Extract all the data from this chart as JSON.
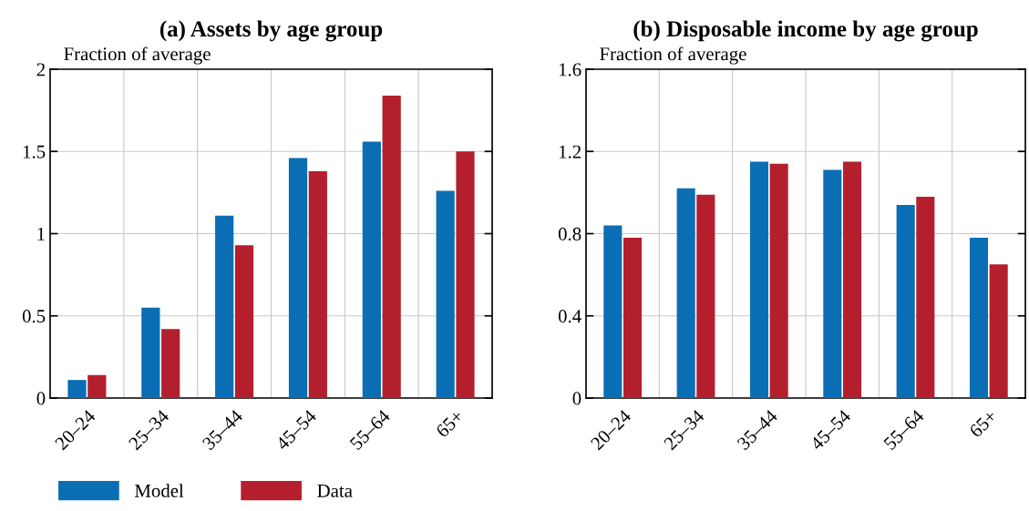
{
  "chart_data": [
    {
      "type": "bar",
      "title": "(a) Assets by age group",
      "ylabel": "Fraction of average",
      "categories": [
        "20–24",
        "25–34",
        "35–44",
        "45–54",
        "55–64",
        "65+"
      ],
      "series": [
        {
          "name": "Model",
          "color": "#0a6eb4",
          "values": [
            0.11,
            0.55,
            1.11,
            1.46,
            1.56,
            1.26
          ]
        },
        {
          "name": "Data",
          "color": "#b41f2e",
          "values": [
            0.14,
            0.42,
            0.93,
            1.38,
            1.84,
            1.5
          ]
        }
      ],
      "ylim": [
        0,
        2
      ],
      "yticks": [
        0,
        0.5,
        1,
        1.5,
        2
      ],
      "grid": true,
      "legend": "bottom"
    },
    {
      "type": "bar",
      "title": "(b) Disposable income by age group",
      "ylabel": "Fraction of average",
      "categories": [
        "20–24",
        "25–34",
        "35–44",
        "45–54",
        "55–64",
        "65+"
      ],
      "series": [
        {
          "color": "#0a6eb4",
          "values": [
            0.84,
            1.02,
            1.15,
            1.11,
            0.94,
            0.78
          ]
        },
        {
          "color": "#b41f2e",
          "values": [
            0.78,
            0.99,
            1.14,
            1.15,
            0.98,
            0.65
          ]
        }
      ],
      "ylim": [
        0,
        1.6
      ],
      "yticks": [
        0,
        0.4,
        0.8,
        1.2,
        1.6
      ],
      "grid": true
    }
  ]
}
